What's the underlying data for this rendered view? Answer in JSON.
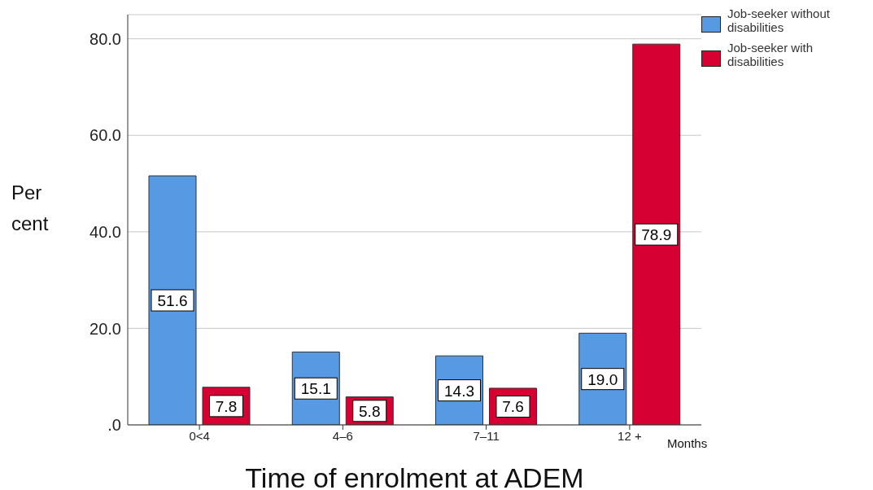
{
  "chart_data": {
    "type": "bar",
    "xlabel": "Time of enrolment at ADEM",
    "ylabel": "Per cent",
    "categories": [
      "0<4",
      "4–6",
      "7–11",
      "12 +"
    ],
    "series": [
      {
        "name": "Job-seeker without disabilities",
        "color": "#5899e3",
        "values": [
          51.6,
          15.1,
          14.3,
          19.0
        ],
        "value_labels": [
          "51.6",
          "15.1",
          "14.3",
          "19.0"
        ]
      },
      {
        "name": "Job-seeker with disabilities",
        "color": "#d70032",
        "values": [
          7.8,
          5.8,
          7.6,
          78.9
        ],
        "value_labels": [
          "7.8",
          "5.8",
          "7.6",
          "78.9"
        ]
      }
    ],
    "ylim": [
      0,
      85
    ],
    "yticks": [
      {
        "value": 0,
        "label": ".0"
      },
      {
        "value": 20,
        "label": "20.0"
      },
      {
        "value": 40,
        "label": "40.0"
      },
      {
        "value": 60,
        "label": "60.0"
      },
      {
        "value": 80,
        "label": "80.0"
      }
    ],
    "grid": "y",
    "legend": "top right",
    "annotations": [
      "Months"
    ]
  }
}
